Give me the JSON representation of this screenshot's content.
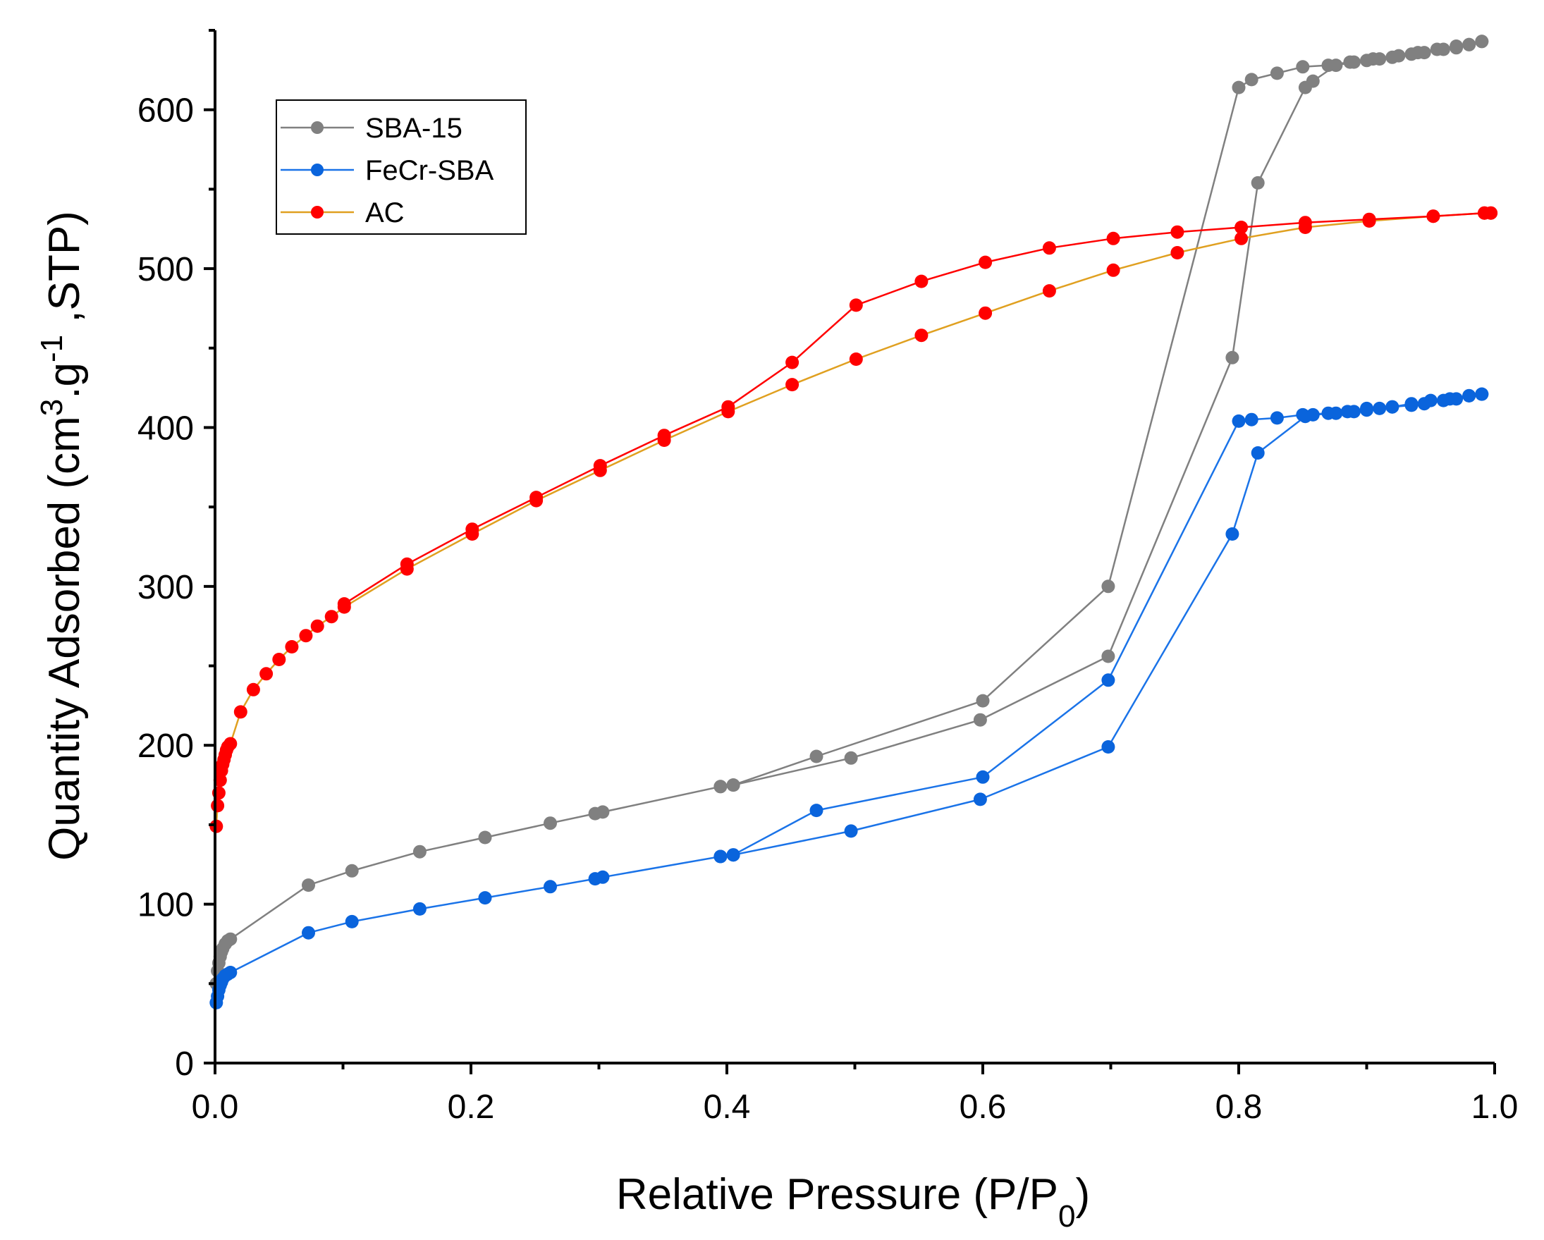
{
  "chart_data": {
    "type": "line",
    "title": "",
    "xlabel": "Relative Pressure (P/P",
    "xlabel_sub": "0",
    "xlabel_end": ")",
    "ylabel": "Quantity Adsorbed (cm",
    "ylabel_sup1": "3",
    "ylabel_mid": ".g",
    "ylabel_sup2": "-1",
    "ylabel_end": " ,STP)",
    "xlim": [
      0.0,
      1.0
    ],
    "ylim": [
      0,
      650
    ],
    "xticks": [
      0.0,
      0.2,
      0.4,
      0.6,
      0.8,
      1.0
    ],
    "xtick_labels": [
      "0.0",
      "0.2",
      "0.4",
      "0.6",
      "0.8",
      "1.0"
    ],
    "yticks": [
      0,
      100,
      200,
      300,
      400,
      500,
      600
    ],
    "ytick_labels": [
      "0",
      "100",
      "200",
      "300",
      "400",
      "500",
      "600"
    ],
    "legend_position": "top-left",
    "grid": false,
    "series": [
      {
        "name": "SBA-15",
        "color": "#808080",
        "line_color": "#808080",
        "adsorption": [
          [
            0.001,
            50
          ],
          [
            0.002,
            58
          ],
          [
            0.003,
            63
          ],
          [
            0.004,
            67
          ],
          [
            0.005,
            70
          ],
          [
            0.006,
            72
          ],
          [
            0.008,
            75
          ],
          [
            0.01,
            77
          ],
          [
            0.012,
            78
          ],
          [
            0.073,
            112
          ],
          [
            0.107,
            121
          ],
          [
            0.16,
            133
          ],
          [
            0.211,
            142
          ],
          [
            0.262,
            151
          ],
          [
            0.297,
            157
          ],
          [
            0.303,
            158
          ],
          [
            0.395,
            174
          ],
          [
            0.405,
            175
          ],
          [
            0.497,
            192
          ],
          [
            0.598,
            216
          ],
          [
            0.698,
            256
          ],
          [
            0.795,
            444
          ],
          [
            0.815,
            554
          ],
          [
            0.852,
            614
          ],
          [
            0.858,
            618
          ],
          [
            0.876,
            628
          ],
          [
            0.89,
            630
          ],
          [
            0.9,
            631
          ],
          [
            0.91,
            632
          ],
          [
            0.92,
            633
          ],
          [
            0.935,
            635
          ],
          [
            0.945,
            636
          ],
          [
            0.96,
            638
          ],
          [
            0.97,
            639
          ],
          [
            0.98,
            641
          ],
          [
            0.99,
            643
          ]
        ],
        "desorption": [
          [
            0.99,
            643
          ],
          [
            0.98,
            641
          ],
          [
            0.97,
            640
          ],
          [
            0.955,
            638
          ],
          [
            0.94,
            636
          ],
          [
            0.925,
            634
          ],
          [
            0.905,
            632
          ],
          [
            0.887,
            630
          ],
          [
            0.87,
            628
          ],
          [
            0.85,
            627
          ],
          [
            0.83,
            623
          ],
          [
            0.81,
            619
          ],
          [
            0.8,
            614
          ],
          [
            0.698,
            300
          ],
          [
            0.6,
            228
          ],
          [
            0.47,
            193
          ],
          [
            0.405,
            175
          ],
          [
            0.395,
            174
          ]
        ]
      },
      {
        "name": "FeCr-SBA",
        "color": "#0a64dc",
        "line_color": "#1a73e8",
        "adsorption": [
          [
            0.001,
            38
          ],
          [
            0.002,
            42
          ],
          [
            0.003,
            46
          ],
          [
            0.004,
            49
          ],
          [
            0.005,
            51
          ],
          [
            0.006,
            53
          ],
          [
            0.008,
            55
          ],
          [
            0.01,
            56
          ],
          [
            0.012,
            57
          ],
          [
            0.073,
            82
          ],
          [
            0.107,
            89
          ],
          [
            0.16,
            97
          ],
          [
            0.211,
            104
          ],
          [
            0.262,
            111
          ],
          [
            0.297,
            116
          ],
          [
            0.303,
            117
          ],
          [
            0.395,
            130
          ],
          [
            0.405,
            131
          ],
          [
            0.497,
            146
          ],
          [
            0.598,
            166
          ],
          [
            0.698,
            199
          ],
          [
            0.795,
            333
          ],
          [
            0.815,
            384
          ],
          [
            0.852,
            407
          ],
          [
            0.858,
            408
          ],
          [
            0.876,
            409
          ],
          [
            0.89,
            410
          ],
          [
            0.9,
            411
          ],
          [
            0.91,
            412
          ],
          [
            0.92,
            413
          ],
          [
            0.935,
            414
          ],
          [
            0.945,
            415
          ],
          [
            0.96,
            417
          ],
          [
            0.97,
            418
          ],
          [
            0.98,
            420
          ],
          [
            0.99,
            421
          ]
        ],
        "desorption": [
          [
            0.99,
            421
          ],
          [
            0.98,
            420
          ],
          [
            0.965,
            418
          ],
          [
            0.95,
            417
          ],
          [
            0.935,
            415
          ],
          [
            0.92,
            413
          ],
          [
            0.9,
            412
          ],
          [
            0.885,
            410
          ],
          [
            0.87,
            409
          ],
          [
            0.85,
            408
          ],
          [
            0.83,
            406
          ],
          [
            0.81,
            405
          ],
          [
            0.8,
            404
          ],
          [
            0.698,
            241
          ],
          [
            0.6,
            180
          ],
          [
            0.47,
            159
          ],
          [
            0.405,
            131
          ],
          [
            0.395,
            130
          ]
        ]
      },
      {
        "name": "AC",
        "color": "#ff0000",
        "line_color_adsorption": "#e0a020",
        "line_color_desorption": "#ff0000",
        "adsorption": [
          [
            0.001,
            149
          ],
          [
            0.002,
            162
          ],
          [
            0.003,
            170
          ],
          [
            0.004,
            178
          ],
          [
            0.005,
            184
          ],
          [
            0.006,
            188
          ],
          [
            0.007,
            191
          ],
          [
            0.008,
            194
          ],
          [
            0.009,
            197
          ],
          [
            0.01,
            199
          ],
          [
            0.012,
            201
          ],
          [
            0.02,
            221
          ],
          [
            0.03,
            235
          ],
          [
            0.04,
            245
          ],
          [
            0.05,
            254
          ],
          [
            0.06,
            262
          ],
          [
            0.071,
            269
          ],
          [
            0.08,
            275
          ],
          [
            0.091,
            281
          ],
          [
            0.101,
            287
          ],
          [
            0.15,
            311
          ],
          [
            0.201,
            333
          ],
          [
            0.251,
            354
          ],
          [
            0.301,
            373
          ],
          [
            0.351,
            392
          ],
          [
            0.401,
            410
          ],
          [
            0.451,
            427
          ],
          [
            0.501,
            443
          ],
          [
            0.552,
            458
          ],
          [
            0.602,
            472
          ],
          [
            0.652,
            486
          ],
          [
            0.702,
            499
          ],
          [
            0.752,
            510
          ],
          [
            0.802,
            519
          ],
          [
            0.852,
            526
          ],
          [
            0.902,
            530
          ],
          [
            0.952,
            533
          ],
          [
            0.992,
            535
          ],
          [
            0.997,
            535
          ]
        ],
        "desorption": [
          [
            0.997,
            535
          ],
          [
            0.992,
            535
          ],
          [
            0.952,
            533
          ],
          [
            0.902,
            531
          ],
          [
            0.852,
            529
          ],
          [
            0.802,
            526
          ],
          [
            0.752,
            523
          ],
          [
            0.702,
            519
          ],
          [
            0.652,
            513
          ],
          [
            0.602,
            504
          ],
          [
            0.552,
            492
          ],
          [
            0.501,
            477
          ],
          [
            0.451,
            441
          ],
          [
            0.401,
            413
          ],
          [
            0.351,
            395
          ],
          [
            0.301,
            376
          ],
          [
            0.251,
            356
          ],
          [
            0.201,
            336
          ],
          [
            0.15,
            314
          ],
          [
            0.101,
            289
          ]
        ]
      }
    ]
  }
}
